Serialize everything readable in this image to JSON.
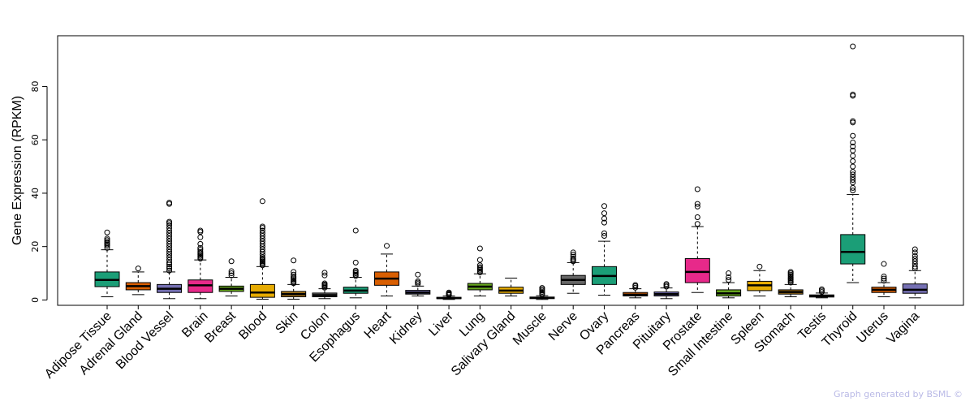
{
  "chart_data": {
    "type": "boxplot",
    "ylabel": "Gene Expression (RPKM)",
    "ylim": [
      -2,
      99
    ],
    "yticks": [
      0,
      20,
      40,
      60,
      80
    ],
    "highlight": {
      "category": "Brain",
      "color": "#ff0000"
    },
    "categories": [
      {
        "name": "Adipose Tissue",
        "color": "#1b9e77",
        "min": 1.2,
        "q1": 5.0,
        "median": 7.5,
        "q3": 10.5,
        "max": 18.8,
        "outliers": [
          19.5,
          20.3,
          20.8,
          21.3,
          21.8,
          22.4,
          23.0,
          25.3
        ]
      },
      {
        "name": "Adrenal Gland",
        "color": "#d95f02",
        "min": 2.0,
        "q1": 3.8,
        "median": 5.2,
        "q3": 6.5,
        "max": 10.5,
        "outliers": [
          11.8
        ]
      },
      {
        "name": "Blood Vessel",
        "color": "#7570b3",
        "min": 0.5,
        "q1": 2.8,
        "median": 4.2,
        "q3": 5.8,
        "max": 10.5,
        "outliers": [
          11,
          11.8,
          12.5,
          13.3,
          14,
          15,
          16,
          17,
          18,
          19,
          20,
          21,
          22,
          23,
          24,
          25,
          26,
          27,
          28,
          28.8,
          29.3,
          36,
          36.5
        ]
      },
      {
        "name": "Brain",
        "color": "#e7298a",
        "min": 0.5,
        "q1": 2.8,
        "median": 5.5,
        "q3": 7.5,
        "max": 15.0,
        "outliers": [
          15.5,
          16,
          16.5,
          17,
          17.5,
          18,
          18.8,
          19.5,
          21,
          23.5,
          25.5,
          26
        ]
      },
      {
        "name": "Breast",
        "color": "#66a61e",
        "min": 1.5,
        "q1": 3.2,
        "median": 4.2,
        "q3": 5.2,
        "max": 8.5,
        "outliers": [
          9.2,
          10.0,
          10.8,
          14.5
        ]
      },
      {
        "name": "Blood",
        "color": "#e6ab02",
        "min": 0.3,
        "q1": 1.0,
        "median": 2.8,
        "q3": 5.8,
        "max": 12.5,
        "outliers": [
          13,
          13.5,
          14,
          14.5,
          15,
          15.5,
          16,
          17,
          18,
          19,
          20,
          21,
          22,
          23,
          24,
          25,
          26,
          27,
          27.5,
          37
        ]
      },
      {
        "name": "Skin",
        "color": "#a6761d",
        "min": 0.3,
        "q1": 1.2,
        "median": 2.2,
        "q3": 3.2,
        "max": 5.8,
        "outliers": [
          6.3,
          6.8,
          7.3,
          7.8,
          8.3,
          8.8,
          9.5,
          10.5,
          14.8
        ]
      },
      {
        "name": "Colon",
        "color": "#666666",
        "min": 0.5,
        "q1": 1.2,
        "median": 1.8,
        "q3": 2.6,
        "max": 4.2,
        "outliers": [
          4.6,
          5.0,
          5.4,
          5.8,
          6.2,
          9.2,
          10.2
        ]
      },
      {
        "name": "Esophagus",
        "color": "#1b9e77",
        "min": 0.8,
        "q1": 2.5,
        "median": 3.5,
        "q3": 4.8,
        "max": 8.5,
        "outliers": [
          9.0,
          9.5,
          10.0,
          10.5,
          11.0,
          14.0,
          26.0
        ]
      },
      {
        "name": "Heart",
        "color": "#d95f02",
        "min": 1.5,
        "q1": 5.5,
        "median": 8.0,
        "q3": 10.5,
        "max": 17.2,
        "outliers": [
          20.3
        ]
      },
      {
        "name": "Kidney",
        "color": "#7570b3",
        "min": 1.5,
        "q1": 2.2,
        "median": 2.8,
        "q3": 3.6,
        "max": 5.2,
        "outliers": [
          6.0,
          6.5,
          7.0,
          9.5
        ]
      },
      {
        "name": "Liver",
        "color": "#e7298a",
        "min": 0.2,
        "q1": 0.5,
        "median": 0.7,
        "q3": 1.0,
        "max": 1.5,
        "outliers": [
          1.8,
          2.1,
          2.4,
          2.8
        ]
      },
      {
        "name": "Lung",
        "color": "#66a61e",
        "min": 1.5,
        "q1": 3.8,
        "median": 5.0,
        "q3": 6.2,
        "max": 9.8,
        "outliers": [
          10.3,
          10.8,
          11.3,
          11.8,
          12.3,
          13.0,
          15.0,
          19.3
        ]
      },
      {
        "name": "Salivary Gland",
        "color": "#e6ab02",
        "min": 1.5,
        "q1": 2.5,
        "median": 3.5,
        "q3": 4.8,
        "max": 8.2,
        "outliers": []
      },
      {
        "name": "Muscle",
        "color": "#a6761d",
        "min": 0.2,
        "q1": 0.5,
        "median": 0.8,
        "q3": 1.1,
        "max": 1.6,
        "outliers": [
          2.0,
          2.5,
          3.0,
          3.5,
          4.0,
          4.5
        ]
      },
      {
        "name": "Nerve",
        "color": "#666666",
        "min": 2.5,
        "q1": 5.8,
        "median": 7.5,
        "q3": 9.2,
        "max": 14.0,
        "outliers": [
          14.5,
          15.0,
          15.5,
          16.2,
          17.0,
          17.8
        ]
      },
      {
        "name": "Ovary",
        "color": "#1b9e77",
        "min": 1.8,
        "q1": 5.8,
        "median": 9.0,
        "q3": 12.5,
        "max": 22.0,
        "outliers": [
          24.0,
          25.0,
          29.0,
          30.5,
          32.5,
          35.2
        ]
      },
      {
        "name": "Pancreas",
        "color": "#d95f02",
        "min": 0.8,
        "q1": 1.5,
        "median": 2.0,
        "q3": 2.8,
        "max": 4.2,
        "outliers": [
          4.6,
          5.2,
          5.6
        ]
      },
      {
        "name": "Pituitary",
        "color": "#7570b3",
        "min": 0.5,
        "q1": 1.5,
        "median": 2.2,
        "q3": 3.0,
        "max": 4.5,
        "outliers": [
          5.0,
          5.5,
          6.0
        ]
      },
      {
        "name": "Prostate",
        "color": "#e7298a",
        "min": 2.8,
        "q1": 6.5,
        "median": 10.5,
        "q3": 15.5,
        "max": 27.5,
        "outliers": [
          28.5,
          31.0,
          35.0,
          36.0,
          41.5
        ]
      },
      {
        "name": "Small Intestine",
        "color": "#66a61e",
        "min": 0.8,
        "q1": 1.5,
        "median": 2.5,
        "q3": 3.8,
        "max": 6.5,
        "outliers": [
          7.5,
          8.5,
          10.0
        ]
      },
      {
        "name": "Spleen",
        "color": "#e6ab02",
        "min": 1.5,
        "q1": 3.5,
        "median": 5.5,
        "q3": 7.0,
        "max": 11.0,
        "outliers": [
          12.5
        ]
      },
      {
        "name": "Stomach",
        "color": "#a6761d",
        "min": 1.2,
        "q1": 2.2,
        "median": 3.0,
        "q3": 3.8,
        "max": 5.8,
        "outliers": [
          6.5,
          7.0,
          7.5,
          8.0,
          8.5,
          9.0,
          9.5,
          10.0,
          10.5
        ]
      },
      {
        "name": "Testis",
        "color": "#666666",
        "min": 0.8,
        "q1": 1.1,
        "median": 1.5,
        "q3": 1.9,
        "max": 2.6,
        "outliers": [
          3.0,
          3.5,
          4.0
        ]
      },
      {
        "name": "Thyroid",
        "color": "#1b9e77",
        "min": 6.5,
        "q1": 13.5,
        "median": 18.0,
        "q3": 24.5,
        "max": 39.5,
        "outliers": [
          41,
          42,
          44,
          45,
          46,
          47,
          48,
          50,
          52,
          54,
          56,
          57.5,
          59,
          61.5,
          66.5,
          67,
          76.5,
          77,
          95
        ]
      },
      {
        "name": "Uterus",
        "color": "#d95f02",
        "min": 1.2,
        "q1": 2.8,
        "median": 3.8,
        "q3": 4.8,
        "max": 6.5,
        "outliers": [
          7.2,
          8.0,
          8.8,
          13.5
        ]
      },
      {
        "name": "Vagina",
        "color": "#7570b3",
        "min": 0.8,
        "q1": 2.5,
        "median": 3.8,
        "q3": 6.0,
        "max": 11.0,
        "outliers": [
          11.8,
          12.5,
          13.5,
          14.5,
          15.5,
          16.5,
          17.8,
          19.0
        ]
      }
    ]
  },
  "credit": "Graph generated by BSML ©"
}
